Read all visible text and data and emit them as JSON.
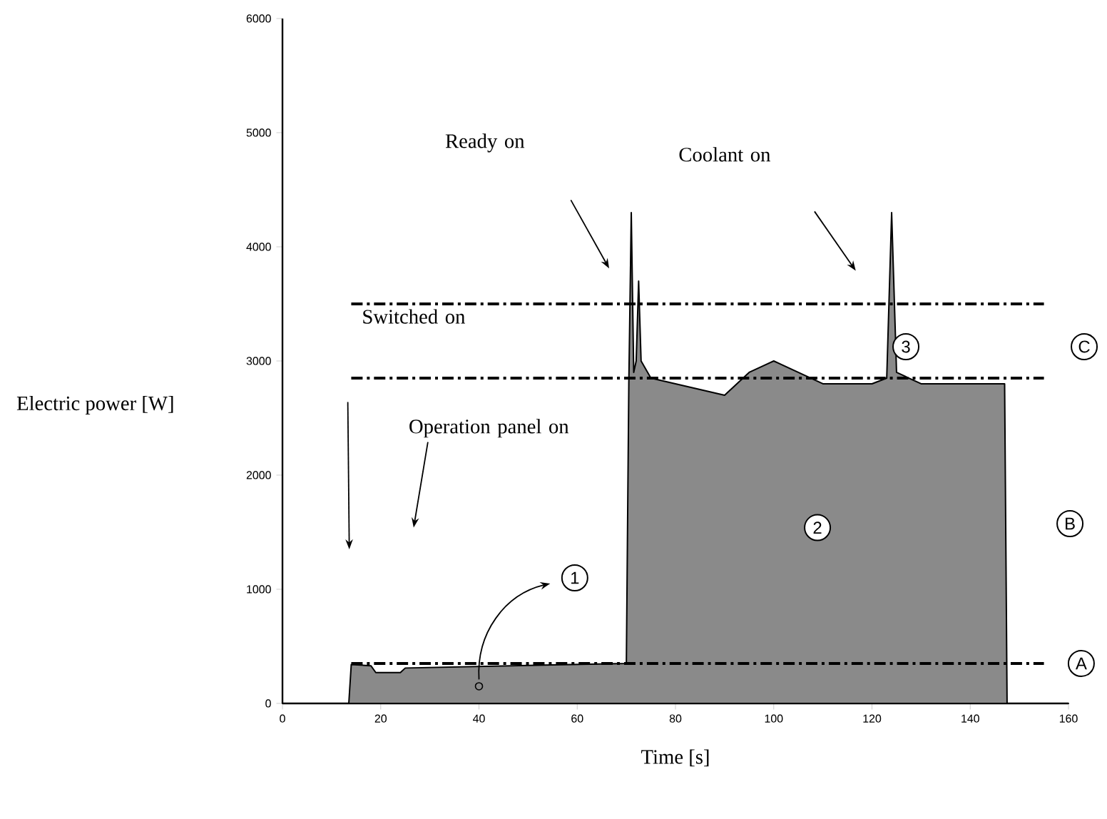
{
  "chart_data": {
    "type": "area",
    "xlabel": "Time [s]",
    "ylabel": "Electric power [W]",
    "x": [
      0,
      13.5,
      14,
      18,
      19,
      24,
      25,
      70,
      70.5,
      71,
      71.5,
      72,
      72.5,
      73,
      75,
      80,
      85,
      90,
      95,
      100,
      105,
      110,
      120,
      123,
      124,
      125,
      130,
      147,
      147.5,
      160
    ],
    "series": [
      {
        "color": "#8a8a8a",
        "values": [
          0,
          0,
          340,
          330,
          270,
          270,
          310,
          350,
          2800,
          4300,
          2900,
          3000,
          3700,
          3000,
          2850,
          2800,
          2750,
          2700,
          2900,
          3000,
          2900,
          2800,
          2800,
          2850,
          4300,
          2900,
          2800,
          2800,
          0,
          0
        ]
      },
      {
        "type": "scatter",
        "marker": "circle",
        "color": "#000000",
        "x": [
          40
        ],
        "values": [
          150
        ]
      }
    ],
    "xlim": [
      0,
      160
    ],
    "ylim": [
      0,
      6000
    ],
    "xticks": [
      0,
      20,
      40,
      60,
      80,
      100,
      120,
      140,
      160
    ],
    "yticks": [
      0,
      1000,
      2000,
      3000,
      4000,
      5000,
      6000
    ],
    "grid": false,
    "ref_lines": [
      {
        "axis": "y",
        "value": 350,
        "line_style": "dashdot"
      },
      {
        "axis": "y",
        "value": 2850,
        "line_style": "dashdot"
      },
      {
        "axis": "y",
        "value": 3500,
        "line_style": "dashdot"
      }
    ],
    "annotations": [
      "Switched on",
      "Operation panel on",
      "Ready on",
      "Coolant on",
      "1",
      "2",
      "3",
      "A",
      "B",
      "C"
    ]
  }
}
